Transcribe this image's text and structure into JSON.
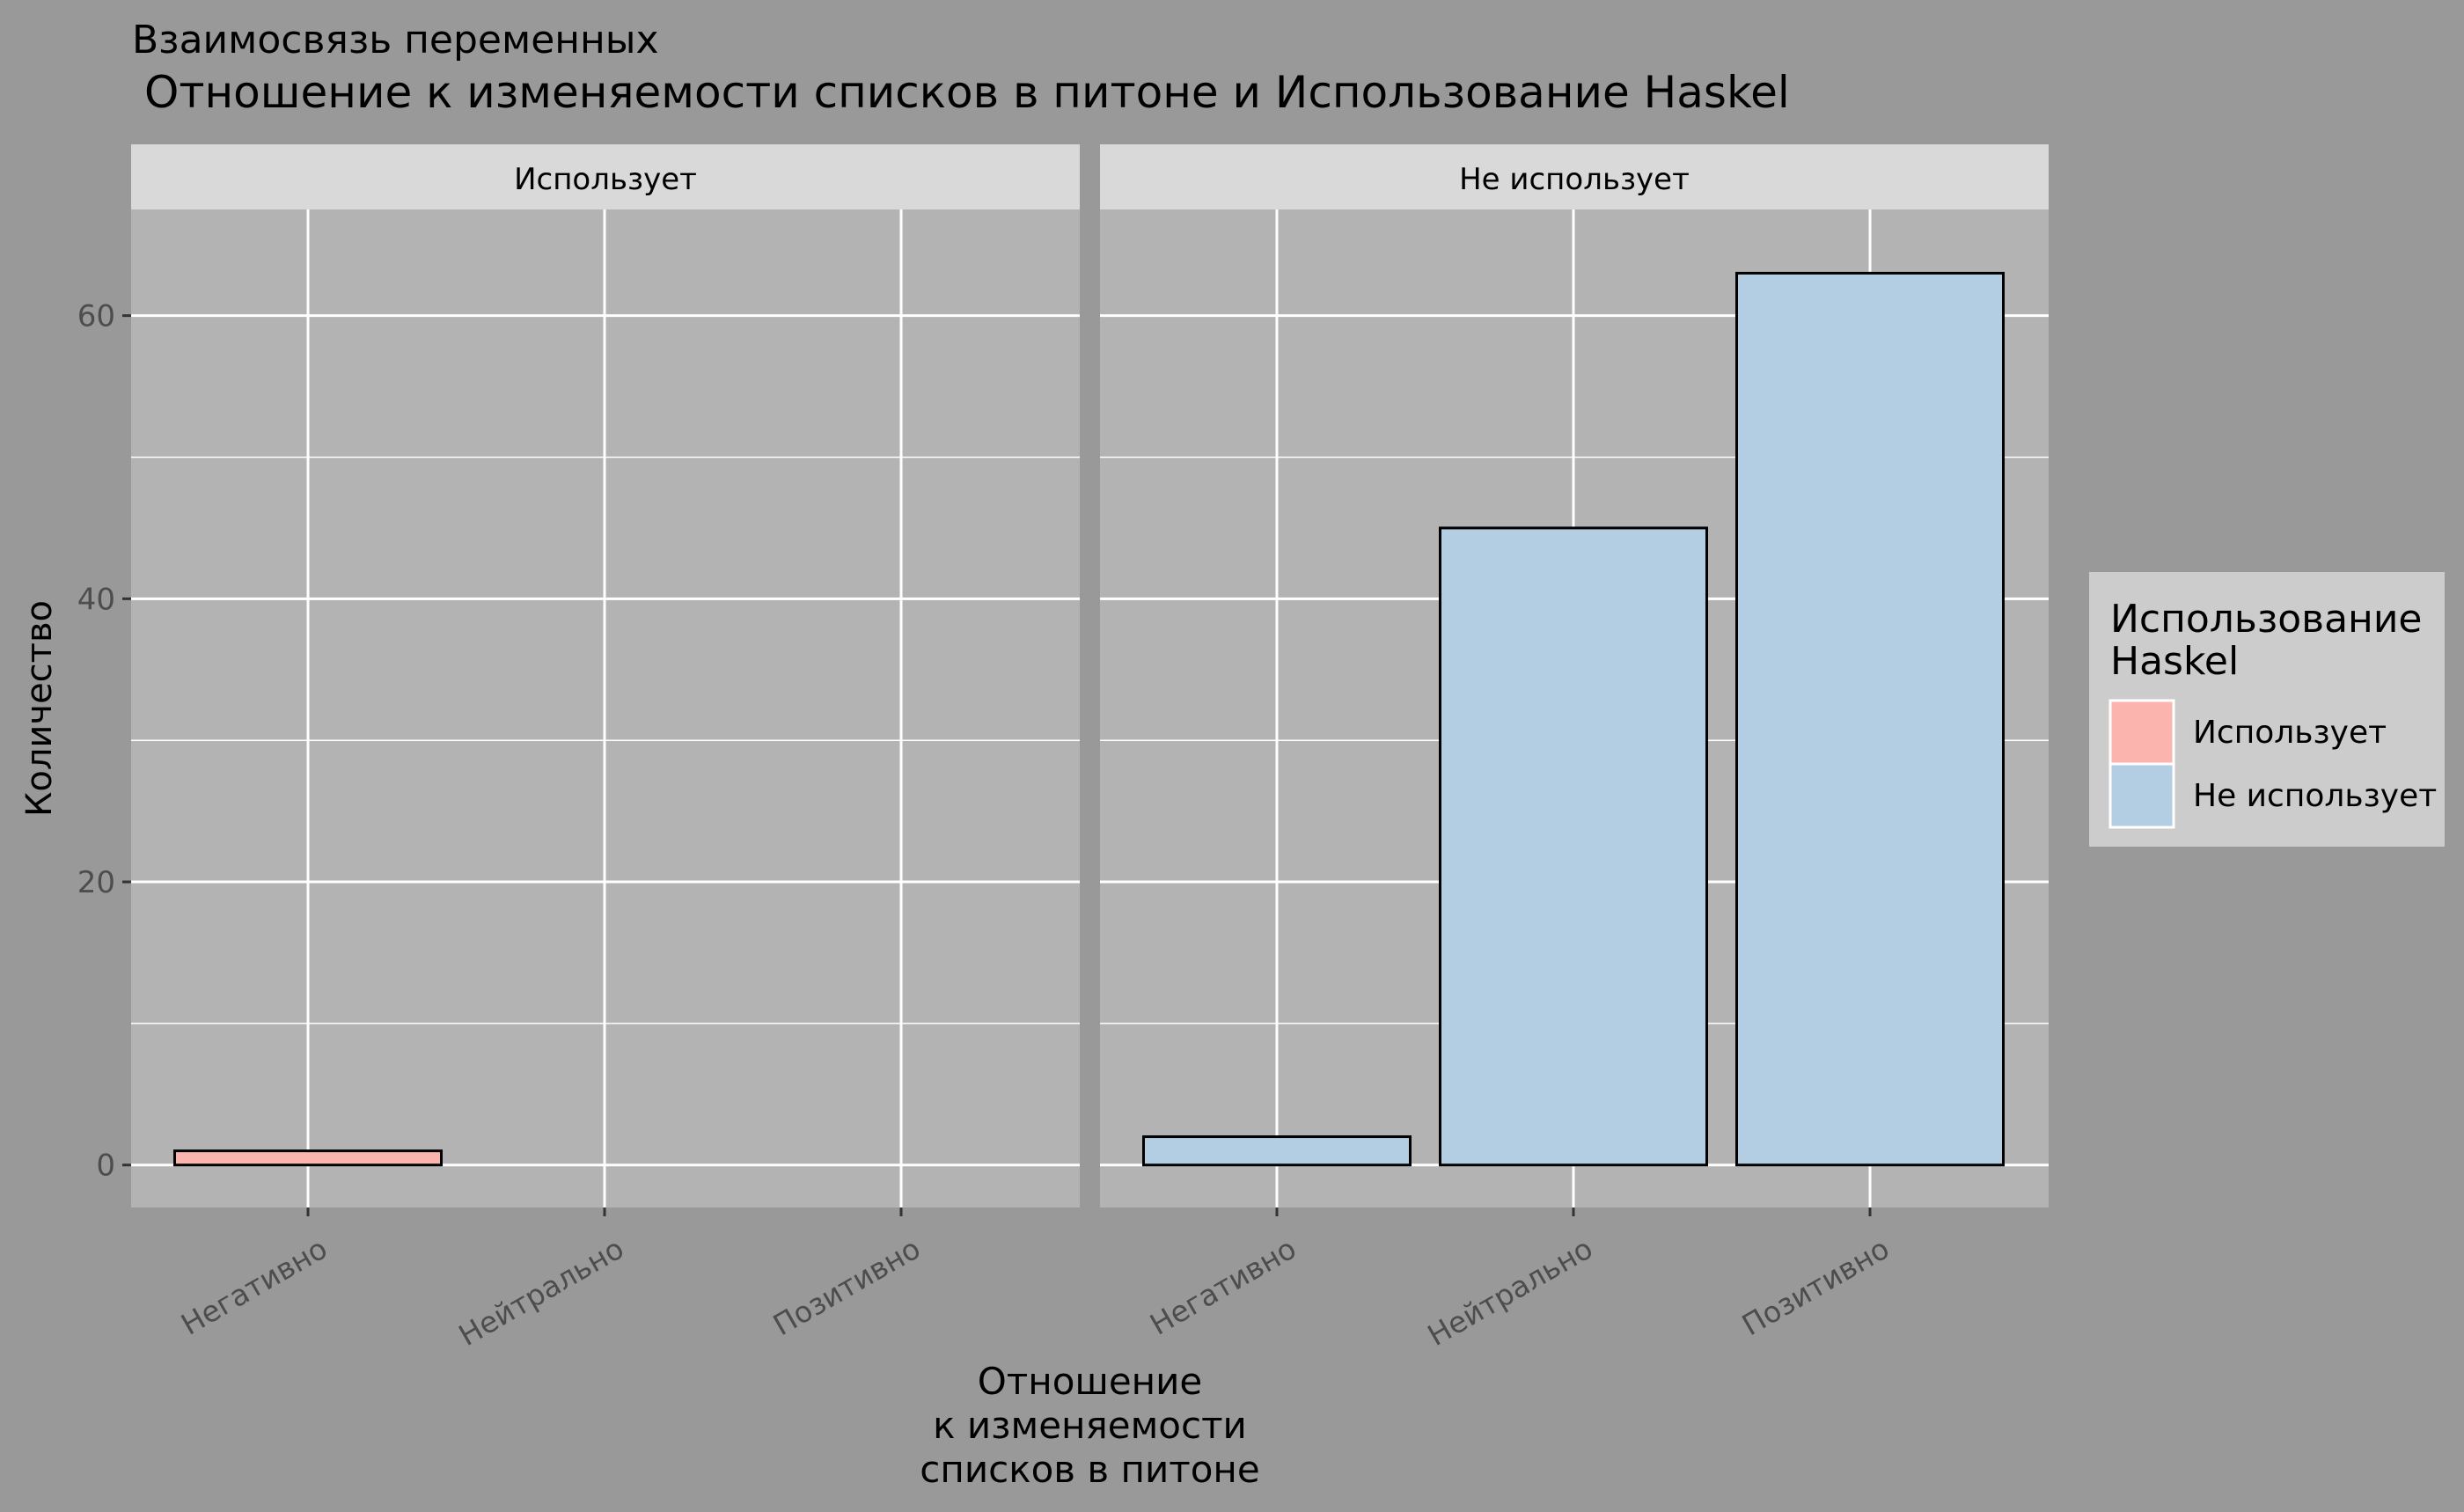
{
  "chart_data": {
    "type": "bar",
    "title": "Взаимосвязь переменных",
    "subtitle": "Отношение к изменяемости списков в питоне и Использование Haskel",
    "xlabel": [
      "Отношение",
      "к изменяемости",
      "списков в питоне"
    ],
    "ylabel": "Количество",
    "ylim": [
      -3,
      67.5
    ],
    "yticks": [
      0,
      20,
      40,
      60
    ],
    "categories": [
      "Негативно",
      "Нейтрально",
      "Позитивно"
    ],
    "facets": [
      {
        "label": "Использует",
        "series": "Использует",
        "values": [
          1,
          0,
          0
        ]
      },
      {
        "label": "Не использует",
        "series": "Не использует",
        "values": [
          2,
          45,
          63
        ]
      }
    ],
    "legend": {
      "title": [
        "Использование",
        "Haskel"
      ],
      "position": "right",
      "items": [
        {
          "label": "Использует",
          "color": "#FBB4AE"
        },
        {
          "label": "Не использует",
          "color": "#B3CDE3"
        }
      ]
    },
    "grid": true,
    "colors": {
      "background": "#999999",
      "panel": "#B3B3B3",
      "strip": "#D9D9D9",
      "legend_bg": "#CCCCCC",
      "gridline": "#FFFFFF",
      "bar_outline": "#000000",
      "axis_text": "#4D4D4D",
      "text": "#000000"
    }
  }
}
